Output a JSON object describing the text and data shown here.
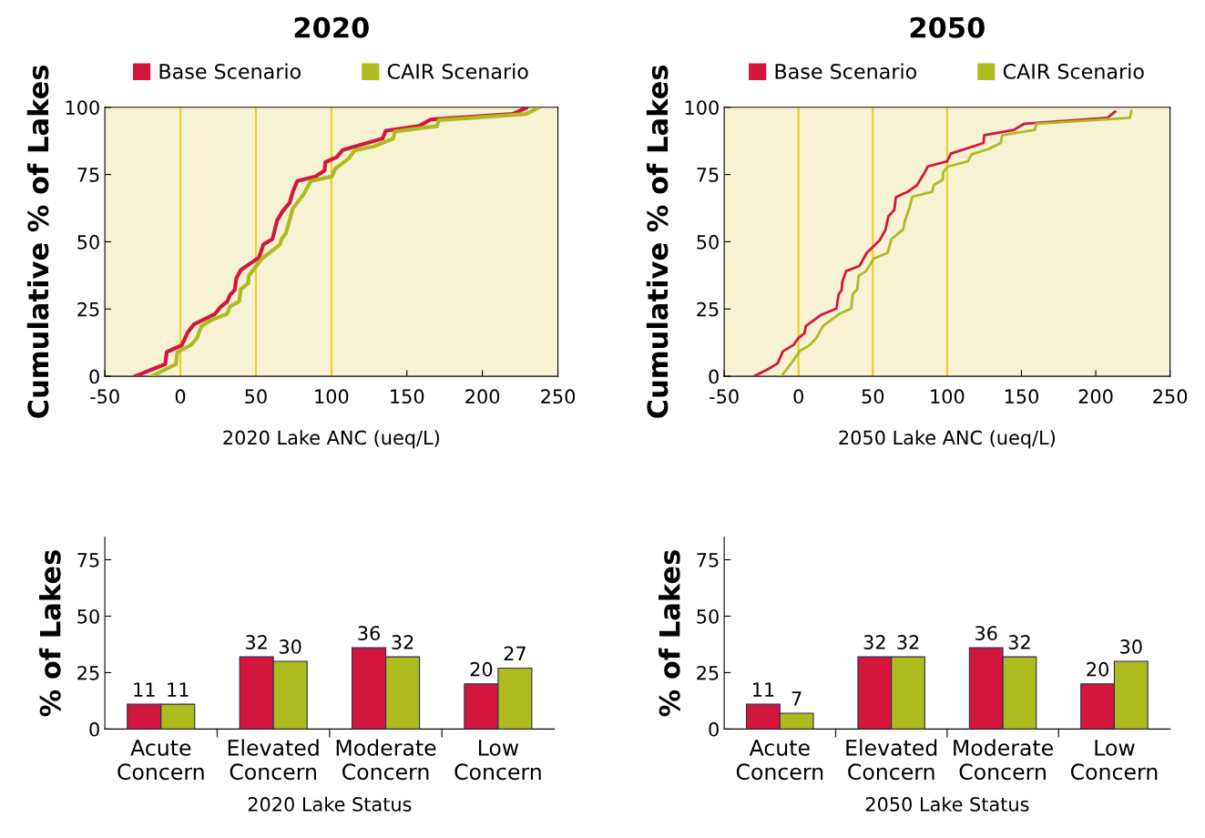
{
  "chart_data": [
    {
      "type": "line",
      "title": "2020",
      "xlabel": "2020 Lake ANC (ueq/L)",
      "ylabel": "Cumulative % of Lakes",
      "xlim": [
        -50,
        250
      ],
      "xticks": [
        -50,
        0,
        50,
        100,
        150,
        200,
        250
      ],
      "ylim": [
        0,
        100
      ],
      "yticks": [
        0,
        25,
        50,
        75,
        100
      ],
      "grid": false,
      "legend": "top",
      "ref_lines": [
        {
          "axis": "x",
          "value": 0,
          "color": "#e8d020"
        },
        {
          "axis": "x",
          "value": 50,
          "color": "#e8d020"
        },
        {
          "axis": "x",
          "value": 100,
          "color": "#e8d020"
        }
      ],
      "series": [
        {
          "name": "Base Scenario",
          "color": "#d4163f",
          "x": [
            -30,
            -10,
            -9,
            1,
            5,
            9,
            23,
            27,
            31,
            33,
            36,
            37,
            40,
            49,
            52,
            55,
            61,
            64,
            67.5,
            72.5,
            74.5,
            77.5,
            89.5,
            95.5,
            96,
            103.5,
            107.5,
            134,
            136,
            158,
            166,
            220,
            229
          ],
          "values": [
            0,
            4.5,
            9,
            11.6,
            16.4,
            19.3,
            23.2,
            26,
            27.7,
            30.3,
            32,
            36.3,
            39.5,
            43,
            44,
            49,
            51,
            57.8,
            61.2,
            64.6,
            68.6,
            72.6,
            74.3,
            76.5,
            79.6,
            81.4,
            84.1,
            88.4,
            91.3,
            93,
            95.5,
            97.5,
            99.8
          ]
        },
        {
          "name": "CAIR Scenario",
          "color": "#adbb1e",
          "x": [
            -19,
            -3,
            -2,
            7,
            11,
            14,
            21,
            31,
            33,
            39,
            40,
            45,
            45.3,
            54,
            66,
            67,
            70,
            74.5,
            81.5,
            86.5,
            100.5,
            102.5,
            111.5,
            115.5,
            129,
            141,
            142,
            170,
            171,
            229,
            237
          ],
          "values": [
            0,
            4.5,
            9,
            11.6,
            14.2,
            18.7,
            21,
            23.2,
            26,
            27.8,
            32.3,
            34.6,
            37.4,
            43.7,
            49,
            51,
            53.3,
            62.4,
            67.5,
            72.6,
            74.3,
            77.1,
            81,
            83.9,
            85.6,
            88.4,
            91,
            93,
            95.2,
            97.5,
            99.8
          ]
        }
      ]
    },
    {
      "type": "line",
      "title": "2050",
      "xlabel": "2050 Lake ANC (ueq/L)",
      "ylabel": "Cumulative % of Lakes",
      "xlim": [
        -50,
        250
      ],
      "xticks": [
        -50,
        0,
        50,
        100,
        150,
        200,
        250
      ],
      "ylim": [
        0,
        100
      ],
      "yticks": [
        0,
        25,
        50,
        75,
        100
      ],
      "grid": false,
      "legend": "top",
      "ref_lines": [
        {
          "axis": "x",
          "value": 0,
          "color": "#e8d020"
        },
        {
          "axis": "x",
          "value": 50,
          "color": "#e8d020"
        },
        {
          "axis": "x",
          "value": 100,
          "color": "#e8d020"
        }
      ],
      "series": [
        {
          "name": "Base Scenario",
          "color": "#d4163f",
          "x": [
            -30,
            -21,
            -14,
            -10.5,
            -3.5,
            0,
            4,
            5,
            15.5,
            25.5,
            27,
            29,
            29.5,
            32,
            41,
            46,
            54.5,
            58.5,
            60.5,
            64.5,
            65.5,
            73.5,
            79.5,
            84.5,
            87,
            100,
            102.5,
            124.5,
            125,
            145,
            152,
            208,
            213
          ],
          "values": [
            0,
            2.5,
            4.8,
            9.3,
            11.6,
            14.2,
            16,
            18.7,
            22.9,
            25.2,
            30.4,
            32,
            35.1,
            39.1,
            41,
            45.9,
            50.5,
            54.4,
            59.5,
            61.8,
            66.6,
            68.6,
            70.9,
            75.4,
            78,
            79.9,
            82.8,
            86.7,
            89.6,
            91.6,
            93.9,
            96.1,
            98.4
          ]
        },
        {
          "name": "CAIR Scenario",
          "color": "#adbb1e",
          "x": [
            -11.5,
            -4.5,
            0.5,
            1.5,
            7.5,
            11.5,
            16.5,
            27.5,
            35.5,
            36.5,
            39.5,
            40.5,
            45.5,
            50.5,
            60,
            62.5,
            70.5,
            71.5,
            74.5,
            76.5,
            90,
            91,
            97,
            97.5,
            100.5,
            114,
            116.5,
            128,
            136,
            137,
            159,
            160,
            223,
            224
          ],
          "values": [
            0,
            5.1,
            9.1,
            9.6,
            11.6,
            13.8,
            18.7,
            23.2,
            25.2,
            30.6,
            32.3,
            37.4,
            39.1,
            43.7,
            45.9,
            51,
            54.6,
            57.6,
            62.4,
            66.7,
            68.6,
            71.1,
            73.1,
            76,
            78,
            79.9,
            82.5,
            84.5,
            86.7,
            89.6,
            91.6,
            93.9,
            96.1,
            98.6
          ]
        }
      ]
    },
    {
      "type": "bar",
      "xlabel": "2020 Lake Status",
      "ylabel": "% of Lakes",
      "categories": [
        "Acute\nConcern",
        "Elevated\nConcern",
        "Moderate\nConcern",
        "Low\nConcern"
      ],
      "ylim": [
        0,
        85
      ],
      "yticks": [
        0,
        25,
        50,
        75
      ],
      "grid": false,
      "data_labels": true,
      "series": [
        {
          "color": "#d4163f",
          "values": [
            11,
            32,
            36,
            20
          ]
        },
        {
          "color": "#adbb1e",
          "values": [
            11,
            30,
            32,
            27
          ]
        }
      ]
    },
    {
      "type": "bar",
      "xlabel": "2050 Lake Status",
      "ylabel": "% of Lakes",
      "categories": [
        "Acute\nConcern",
        "Elevated\nConcern",
        "Moderate\nConcern",
        "Low\nConcern"
      ],
      "ylim": [
        0,
        85
      ],
      "yticks": [
        0,
        25,
        50,
        75
      ],
      "grid": false,
      "data_labels": true,
      "series": [
        {
          "color": "#d4163f",
          "values": [
            11,
            32,
            36,
            20
          ]
        },
        {
          "color": "#adbb1e",
          "values": [
            7,
            32,
            32,
            30
          ]
        }
      ]
    }
  ]
}
